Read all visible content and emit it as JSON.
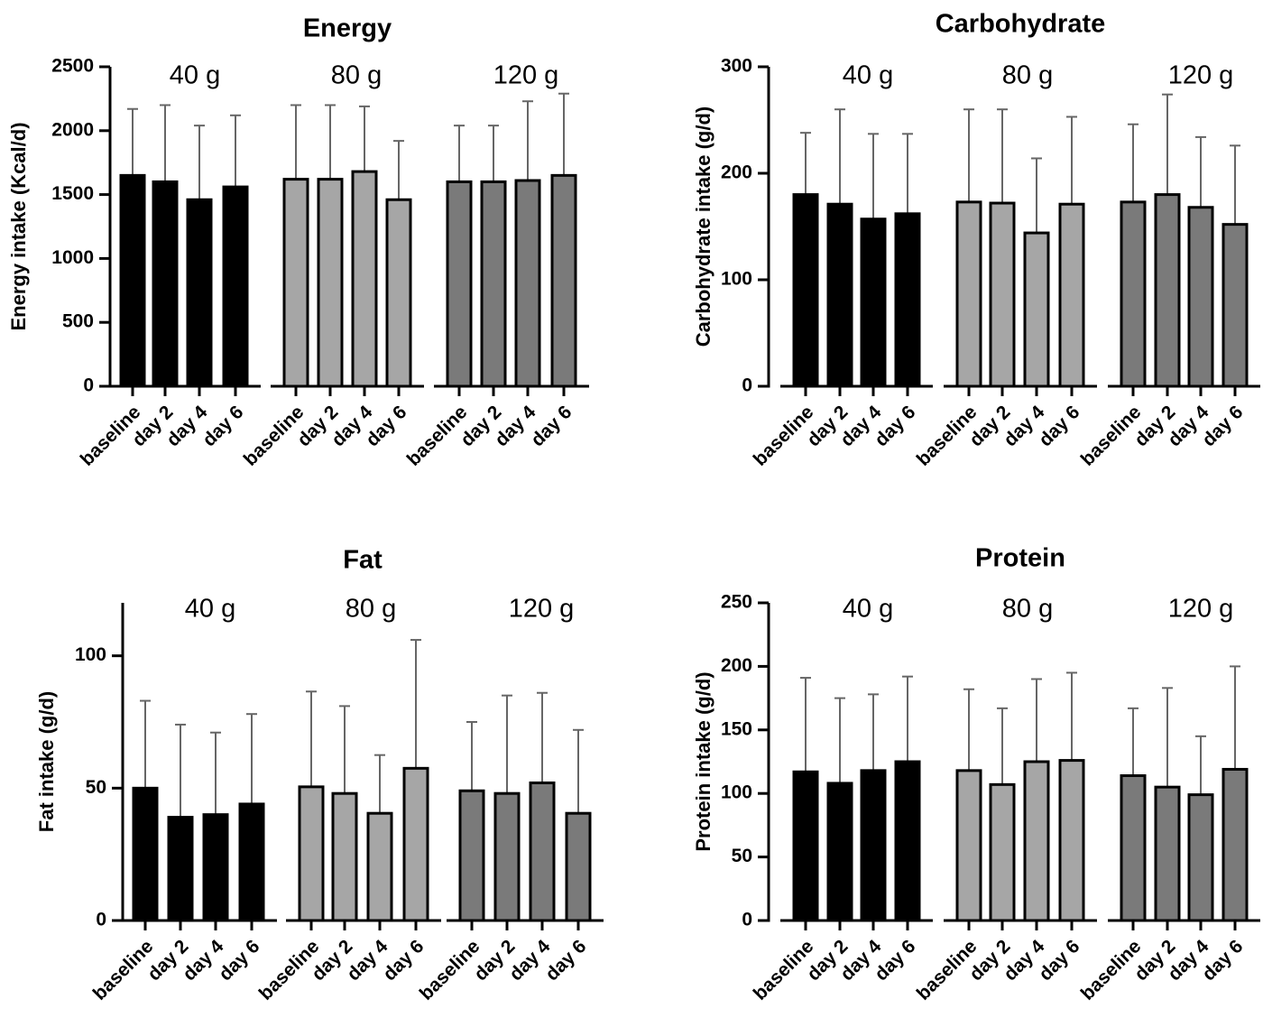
{
  "colors": {
    "group_40": "#000000",
    "group_80": "#a6a6a6",
    "group_120": "#7a7a7a",
    "axis": "#000000",
    "errorbar": "#666666"
  },
  "chart_data": [
    {
      "type": "bar",
      "title": "Energy",
      "ylabel": "Energy intake (Kcal/d)",
      "ylim": [
        0,
        2500
      ],
      "yticks": [
        0,
        500,
        1000,
        1500,
        2000,
        2500
      ],
      "groups": [
        "40 g",
        "80 g",
        "120 g"
      ],
      "categories": [
        "baseline",
        "day 2",
        "day 4",
        "day 6"
      ],
      "series": [
        {
          "name": "40 g",
          "values": [
            1650,
            1600,
            1460,
            1560
          ],
          "errors": [
            520,
            600,
            580,
            560
          ]
        },
        {
          "name": "80 g",
          "values": [
            1620,
            1620,
            1680,
            1460
          ],
          "errors": [
            580,
            580,
            510,
            460
          ]
        },
        {
          "name": "120 g",
          "values": [
            1600,
            1600,
            1610,
            1650
          ],
          "errors": [
            440,
            440,
            620,
            640
          ]
        }
      ]
    },
    {
      "type": "bar",
      "title": "Carbohydrate",
      "ylabel": "Carbohydrate intake (g/d)",
      "ylim": [
        0,
        300
      ],
      "yticks": [
        0,
        100,
        200,
        300
      ],
      "groups": [
        "40 g",
        "80 g",
        "120 g"
      ],
      "categories": [
        "baseline",
        "day 2",
        "day 4",
        "day 6"
      ],
      "series": [
        {
          "name": "40 g",
          "values": [
            180,
            171,
            157,
            162
          ],
          "errors": [
            58,
            89,
            80,
            75
          ]
        },
        {
          "name": "80 g",
          "values": [
            173,
            172,
            144,
            171
          ],
          "errors": [
            87,
            88,
            70,
            82
          ]
        },
        {
          "name": "120 g",
          "values": [
            173,
            180,
            168,
            152
          ],
          "errors": [
            73,
            94,
            66,
            74
          ]
        }
      ]
    },
    {
      "type": "bar",
      "title": "Fat",
      "ylabel": "Fat intake (g/d)",
      "ylim": [
        0,
        120
      ],
      "yticks": [
        0,
        50,
        100
      ],
      "groups": [
        "40 g",
        "80 g",
        "120 g"
      ],
      "categories": [
        "baseline",
        "day 2",
        "day 4",
        "day 6"
      ],
      "series": [
        {
          "name": "40 g",
          "values": [
            50,
            39,
            40,
            44
          ],
          "errors": [
            33,
            35,
            31,
            34
          ]
        },
        {
          "name": "80 g",
          "values": [
            50.5,
            48,
            40.5,
            57.5
          ],
          "errors": [
            36,
            33,
            22,
            48.5
          ]
        },
        {
          "name": "120 g",
          "values": [
            49,
            48,
            52,
            40.5
          ],
          "errors": [
            26,
            37,
            34,
            31.5
          ]
        }
      ]
    },
    {
      "type": "bar",
      "title": "Protein",
      "ylabel": "Protein intake (g/d)",
      "ylim": [
        0,
        250
      ],
      "yticks": [
        0,
        50,
        100,
        150,
        200,
        250
      ],
      "groups": [
        "40 g",
        "80 g",
        "120 g"
      ],
      "categories": [
        "baseline",
        "day 2",
        "day 4",
        "day 6"
      ],
      "series": [
        {
          "name": "40 g",
          "values": [
            117,
            108,
            118,
            125
          ],
          "errors": [
            74,
            67,
            60,
            67
          ]
        },
        {
          "name": "80 g",
          "values": [
            118,
            107,
            125,
            126
          ],
          "errors": [
            64,
            60,
            65,
            69
          ]
        },
        {
          "name": "120 g",
          "values": [
            114,
            105,
            99,
            119
          ],
          "errors": [
            53,
            78,
            46,
            81
          ]
        }
      ]
    }
  ]
}
